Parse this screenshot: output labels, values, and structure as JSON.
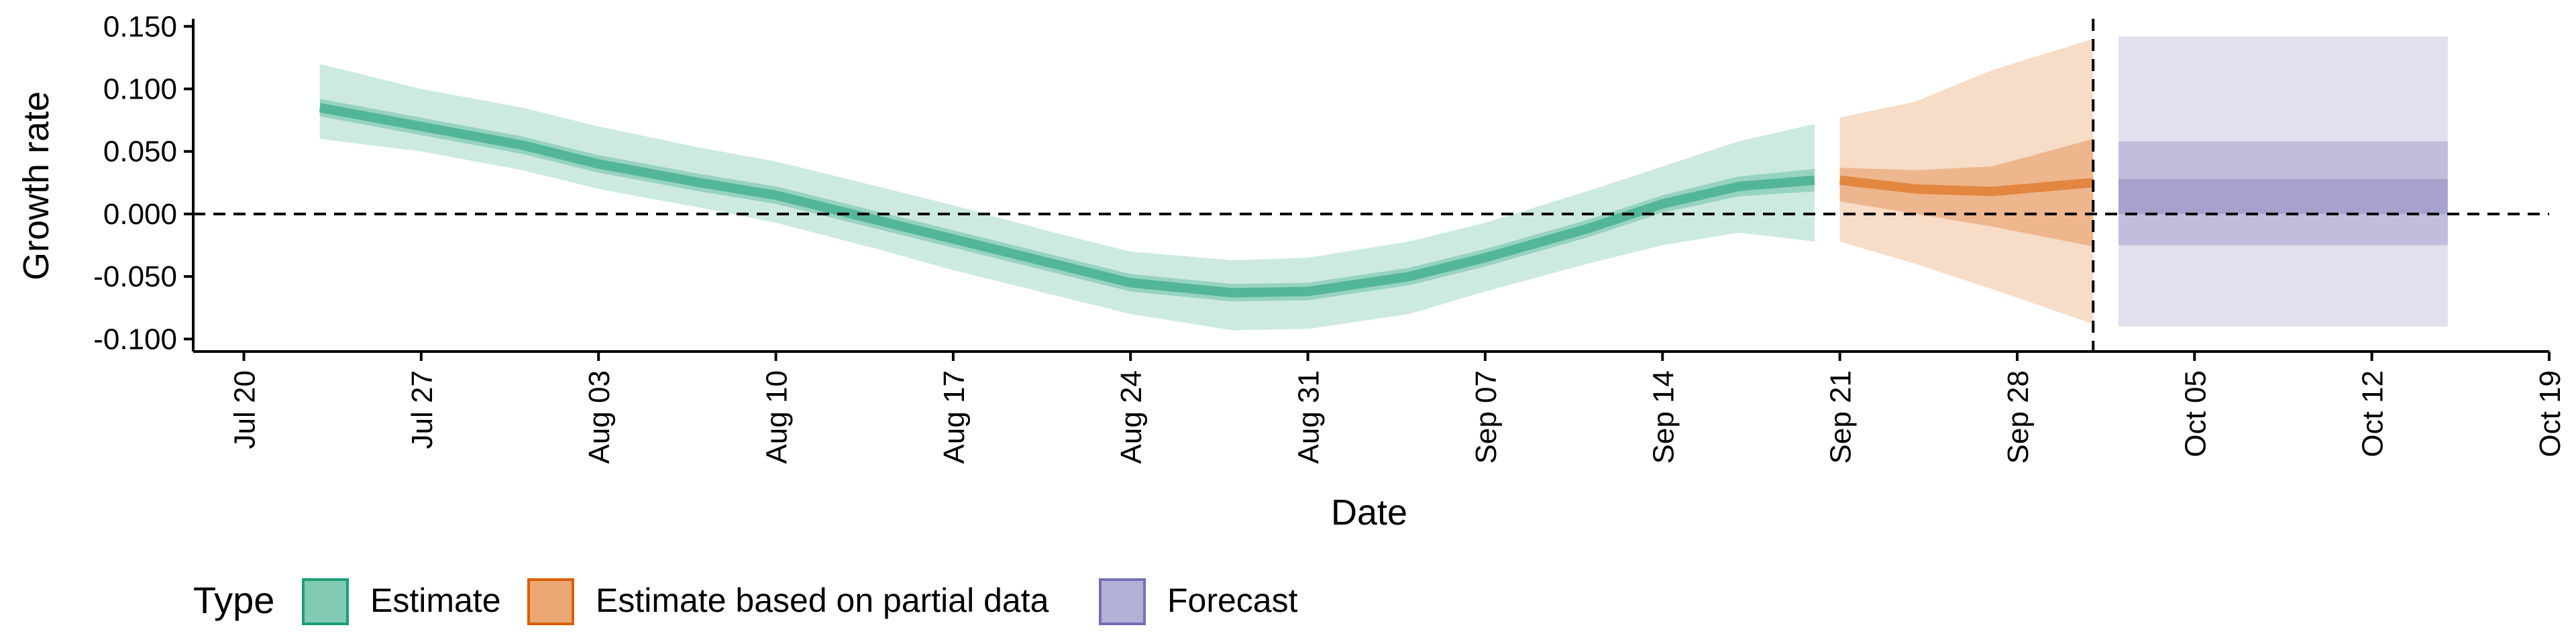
{
  "chart_data": {
    "type": "area",
    "title": "",
    "xlabel": "Date",
    "ylabel": "Growth rate",
    "x_axis": {
      "type": "date",
      "range": [
        "2020-07-18",
        "2020-10-19"
      ],
      "ticks": [
        "2020-07-20",
        "2020-07-27",
        "2020-08-03",
        "2020-08-10",
        "2020-08-17",
        "2020-08-24",
        "2020-08-31",
        "2020-09-07",
        "2020-09-14",
        "2020-09-21",
        "2020-09-28",
        "2020-10-05",
        "2020-10-12",
        "2020-10-19"
      ],
      "tick_labels": [
        "Jul 20",
        "Jul 27",
        "Aug 03",
        "Aug 10",
        "Aug 17",
        "Aug 24",
        "Aug 31",
        "Sep 07",
        "Sep 14",
        "Sep 21",
        "Sep 28",
        "Oct 05",
        "Oct 12",
        "Oct 19"
      ]
    },
    "y_axis": {
      "range": [
        -0.11,
        0.155
      ],
      "ticks": [
        0.15,
        0.1,
        0.05,
        0.0,
        -0.05,
        -0.1
      ],
      "tick_labels": [
        "0.150",
        "0.100",
        "0.050",
        "0.000",
        "-0.050",
        "-0.100"
      ]
    },
    "reference_lines": [
      {
        "orientation": "horizontal",
        "value": 0.0,
        "style": "dashed"
      },
      {
        "orientation": "vertical",
        "value": "2020-10-01",
        "style": "dashed"
      }
    ],
    "legend": {
      "title": "Type",
      "placement": "bottom-left",
      "entries": [
        {
          "label": "Estimate",
          "fill": "#1b9e77",
          "stroke": "#1b9e77"
        },
        {
          "label": "Estimate based on partial data",
          "fill": "#d95f02",
          "stroke": "#d95f02"
        },
        {
          "label": "Forecast",
          "fill": "#7570b3",
          "stroke": "#7570b3"
        }
      ]
    },
    "series": [
      {
        "name": "Estimate",
        "color": "#1b9e77",
        "points": [
          {
            "x": "2020-07-23",
            "median": 0.085,
            "l50": 0.078,
            "u50": 0.092,
            "l90": 0.06,
            "u90": 0.12
          },
          {
            "x": "2020-07-27",
            "median": 0.07,
            "l50": 0.063,
            "u50": 0.077,
            "l90": 0.05,
            "u90": 0.1
          },
          {
            "x": "2020-07-31",
            "median": 0.055,
            "l50": 0.048,
            "u50": 0.062,
            "l90": 0.035,
            "u90": 0.085
          },
          {
            "x": "2020-08-03",
            "median": 0.04,
            "l50": 0.033,
            "u50": 0.047,
            "l90": 0.02,
            "u90": 0.07
          },
          {
            "x": "2020-08-07",
            "median": 0.025,
            "l50": 0.018,
            "u50": 0.032,
            "l90": 0.005,
            "u90": 0.053
          },
          {
            "x": "2020-08-10",
            "median": 0.015,
            "l50": 0.008,
            "u50": 0.022,
            "l90": -0.007,
            "u90": 0.042
          },
          {
            "x": "2020-08-14",
            "median": -0.005,
            "l50": -0.012,
            "u50": 0.002,
            "l90": -0.028,
            "u90": 0.022
          },
          {
            "x": "2020-08-17",
            "median": -0.02,
            "l50": -0.027,
            "u50": -0.013,
            "l90": -0.045,
            "u90": 0.007
          },
          {
            "x": "2020-08-21",
            "median": -0.04,
            "l50": -0.047,
            "u50": -0.033,
            "l90": -0.065,
            "u90": -0.015
          },
          {
            "x": "2020-08-24",
            "median": -0.055,
            "l50": -0.062,
            "u50": -0.048,
            "l90": -0.08,
            "u90": -0.03
          },
          {
            "x": "2020-08-28",
            "median": -0.063,
            "l50": -0.07,
            "u50": -0.056,
            "l90": -0.093,
            "u90": -0.037
          },
          {
            "x": "2020-08-31",
            "median": -0.062,
            "l50": -0.069,
            "u50": -0.055,
            "l90": -0.092,
            "u90": -0.035
          },
          {
            "x": "2020-09-04",
            "median": -0.05,
            "l50": -0.057,
            "u50": -0.043,
            "l90": -0.08,
            "u90": -0.022
          },
          {
            "x": "2020-09-07",
            "median": -0.035,
            "l50": -0.042,
            "u50": -0.028,
            "l90": -0.062,
            "u90": -0.007
          },
          {
            "x": "2020-09-11",
            "median": -0.012,
            "l50": -0.019,
            "u50": -0.005,
            "l90": -0.04,
            "u90": 0.018
          },
          {
            "x": "2020-09-14",
            "median": 0.008,
            "l50": 0.001,
            "u50": 0.015,
            "l90": -0.025,
            "u90": 0.038
          },
          {
            "x": "2020-09-17",
            "median": 0.022,
            "l50": 0.014,
            "u50": 0.03,
            "l90": -0.015,
            "u90": 0.058
          },
          {
            "x": "2020-09-20",
            "median": 0.027,
            "l50": 0.018,
            "u50": 0.036,
            "l90": -0.022,
            "u90": 0.072
          }
        ]
      },
      {
        "name": "Estimate based on partial data",
        "color": "#d95f02",
        "points": [
          {
            "x": "2020-09-21",
            "median": 0.027,
            "l50": 0.01,
            "u50": 0.037,
            "l90": -0.022,
            "u90": 0.077
          },
          {
            "x": "2020-09-24",
            "median": 0.02,
            "l50": 0.0,
            "u50": 0.035,
            "l90": -0.04,
            "u90": 0.09
          },
          {
            "x": "2020-09-27",
            "median": 0.018,
            "l50": -0.01,
            "u50": 0.038,
            "l90": -0.06,
            "u90": 0.115
          },
          {
            "x": "2020-10-01",
            "median": 0.025,
            "l50": -0.026,
            "u50": 0.06,
            "l90": -0.088,
            "u90": 0.14
          }
        ]
      },
      {
        "name": "Forecast",
        "color": "#7570b3",
        "points": [
          {
            "x": "2020-10-02",
            "median": 0.015,
            "l50": -0.025,
            "u50": 0.058,
            "l90": -0.09,
            "u90": 0.142,
            "inner_l": 0.0,
            "inner_u": 0.028
          },
          {
            "x": "2020-10-15",
            "median": 0.015,
            "l50": -0.025,
            "u50": 0.058,
            "l90": -0.09,
            "u90": 0.142,
            "inner_l": 0.0,
            "inner_u": 0.028
          }
        ]
      }
    ]
  }
}
